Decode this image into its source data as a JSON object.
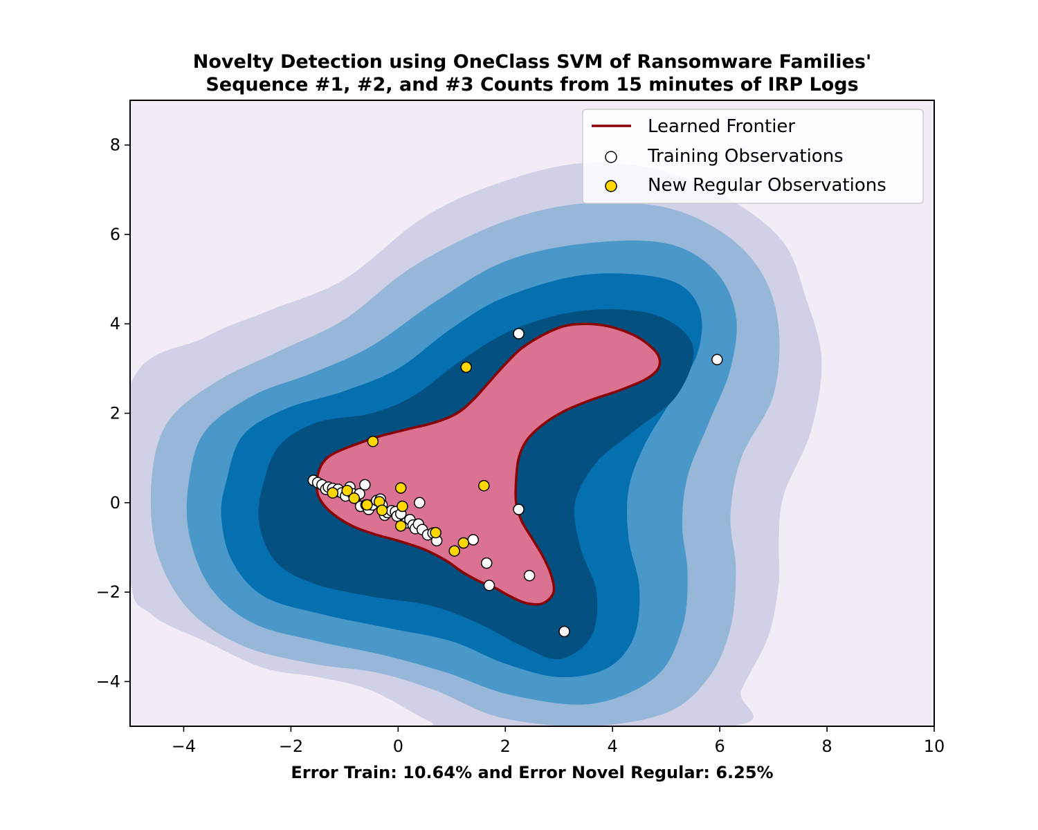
{
  "chart_data": {
    "type": "scatter",
    "title": "Novelty Detection using OneClass SVM of Ransomware Families'\nSequence #1, #2, and #3 Counts from 15 minutes of IRP Logs",
    "title_lines": [
      "Novelty Detection using OneClass SVM of Ransomware Families'",
      "Sequence #1, #2, and #3 Counts from 15 minutes of IRP Logs"
    ],
    "xlabel": "Error Train: 10.64% and Error Novel Regular: 6.25%",
    "ylabel": "",
    "xlim": [
      -5,
      10
    ],
    "ylim": [
      -5,
      9
    ],
    "xticks": [
      -4,
      -2,
      0,
      2,
      4,
      6,
      8,
      10
    ],
    "yticks": [
      -4,
      -2,
      0,
      2,
      4,
      6,
      8
    ],
    "xtick_labels": [
      "−4",
      "−2",
      "0",
      "2",
      "4",
      "6",
      "8",
      "10"
    ],
    "ytick_labels": [
      "−4",
      "−2",
      "0",
      "2",
      "4",
      "6",
      "8"
    ],
    "grid": false,
    "legend_placement": "upper-right",
    "legend": [
      {
        "label": "Learned Frontier",
        "kind": "line",
        "color": "#8b0000"
      },
      {
        "label": "Training Observations",
        "kind": "marker",
        "color": "#ffffff"
      },
      {
        "label": "New Regular Observations",
        "kind": "marker",
        "color": "#ffd700"
      }
    ],
    "colors": {
      "background": "#f1ecf5",
      "contour_levels": [
        "#d0d1e6",
        "#97b7d8",
        "#4a98c9",
        "#0570b0",
        "#045080"
      ],
      "frontier_fill": "#dc7292",
      "frontier_line": "#8b0000",
      "training": "#ffffff",
      "new_regular": "#ffd700"
    },
    "contour_boundaries": [
      [
        [
          -5,
          2.6
        ],
        [
          -3.6,
          3.7
        ],
        [
          -2.4,
          4.3
        ],
        [
          -1.0,
          5.0
        ],
        [
          0.5,
          6.4
        ],
        [
          2,
          7.2
        ],
        [
          3.5,
          7.6
        ],
        [
          5,
          7.4
        ],
        [
          6.3,
          6.7
        ],
        [
          7.2,
          5.8
        ],
        [
          7.6,
          4.6
        ],
        [
          7.9,
          3.2
        ],
        [
          7.7,
          1.6
        ],
        [
          7.2,
          0.2
        ],
        [
          7.1,
          -0.8
        ],
        [
          7.1,
          -1.8
        ],
        [
          6.9,
          -3
        ],
        [
          6.4,
          -4.2
        ],
        [
          6.2,
          -5
        ],
        [
          1.0,
          -5
        ],
        [
          0.6,
          -4.9
        ],
        [
          -0.5,
          -4.2
        ],
        [
          -1.5,
          -3.9
        ],
        [
          -2.5,
          -3.7
        ],
        [
          -3.6,
          -3.1
        ],
        [
          -4.6,
          -2.5
        ],
        [
          -5,
          -1.6
        ]
      ],
      [
        [
          -4.6,
          0.5
        ],
        [
          -4.3,
          1.8
        ],
        [
          -3.4,
          2.7
        ],
        [
          -2.2,
          3.4
        ],
        [
          -1.0,
          4.1
        ],
        [
          0.3,
          5.3
        ],
        [
          2,
          6.3
        ],
        [
          3.5,
          6.7
        ],
        [
          5,
          6.6
        ],
        [
          6.1,
          6.0
        ],
        [
          6.8,
          5.1
        ],
        [
          7.1,
          3.9
        ],
        [
          7.0,
          2.4
        ],
        [
          6.4,
          1.0
        ],
        [
          6.2,
          -0.3
        ],
        [
          6.3,
          -1.5
        ],
        [
          6.2,
          -2.8
        ],
        [
          5.8,
          -3.9
        ],
        [
          5.0,
          -4.7
        ],
        [
          3.5,
          -5.0
        ],
        [
          1.9,
          -4.8
        ],
        [
          0.7,
          -4.2
        ],
        [
          -0.4,
          -3.8
        ],
        [
          -1.6,
          -3.6
        ],
        [
          -2.9,
          -3.2
        ],
        [
          -3.9,
          -2.4
        ],
        [
          -4.5,
          -1.1
        ]
      ],
      [
        [
          -3.9,
          0.5
        ],
        [
          -3.6,
          1.6
        ],
        [
          -2.7,
          2.4
        ],
        [
          -1.6,
          2.9
        ],
        [
          -0.5,
          3.5
        ],
        [
          0.7,
          4.5
        ],
        [
          2,
          5.4
        ],
        [
          3.5,
          5.8
        ],
        [
          5,
          5.8
        ],
        [
          5.9,
          5.2
        ],
        [
          6.3,
          4.2
        ],
        [
          6.2,
          3.0
        ],
        [
          5.8,
          1.8
        ],
        [
          5.4,
          0.6
        ],
        [
          5.3,
          -0.5
        ],
        [
          5.4,
          -1.6
        ],
        [
          5.3,
          -2.8
        ],
        [
          4.8,
          -3.9
        ],
        [
          3.6,
          -4.5
        ],
        [
          2.1,
          -4.3
        ],
        [
          0.9,
          -3.8
        ],
        [
          -0.3,
          -3.4
        ],
        [
          -1.5,
          -3.1
        ],
        [
          -2.7,
          -2.7
        ],
        [
          -3.5,
          -1.9
        ],
        [
          -3.9,
          -0.7
        ]
      ],
      [
        [
          -3.2,
          0.5
        ],
        [
          -2.9,
          1.5
        ],
        [
          -2.1,
          2.1
        ],
        [
          -1.0,
          2.5
        ],
        [
          0,
          3.0
        ],
        [
          1.0,
          3.9
        ],
        [
          2,
          4.6
        ],
        [
          3.5,
          5.1
        ],
        [
          5,
          5.0
        ],
        [
          5.6,
          4.4
        ],
        [
          5.6,
          3.4
        ],
        [
          5.1,
          2.3
        ],
        [
          4.6,
          1.3
        ],
        [
          4.3,
          0.3
        ],
        [
          4.3,
          -0.8
        ],
        [
          4.5,
          -1.9
        ],
        [
          4.4,
          -3.0
        ],
        [
          3.9,
          -3.7
        ],
        [
          3.0,
          -3.9
        ],
        [
          2.0,
          -3.6
        ],
        [
          1.0,
          -3.1
        ],
        [
          -0.2,
          -2.8
        ],
        [
          -1.4,
          -2.5
        ],
        [
          -2.5,
          -2.1
        ],
        [
          -3.1,
          -1.3
        ],
        [
          -3.3,
          -0.3
        ]
      ],
      [
        [
          -2.5,
          0.5
        ],
        [
          -2.2,
          1.3
        ],
        [
          -1.5,
          1.8
        ],
        [
          -0.5,
          2.0
        ],
        [
          0.3,
          2.4
        ],
        [
          1.2,
          3.2
        ],
        [
          2.2,
          3.9
        ],
        [
          3.5,
          4.3
        ],
        [
          4.8,
          4.2
        ],
        [
          5.5,
          3.5
        ],
        [
          5.2,
          2.4
        ],
        [
          4.4,
          1.6
        ],
        [
          3.7,
          0.9
        ],
        [
          3.3,
          0.0
        ],
        [
          3.4,
          -1.0
        ],
        [
          3.7,
          -2.0
        ],
        [
          3.6,
          -3.0
        ],
        [
          3.0,
          -3.5
        ],
        [
          2.3,
          -3.2
        ],
        [
          1.5,
          -2.7
        ],
        [
          0.6,
          -2.3
        ],
        [
          -0.5,
          -2.1
        ],
        [
          -1.6,
          -1.8
        ],
        [
          -2.3,
          -1.3
        ],
        [
          -2.6,
          -0.4
        ]
      ]
    ],
    "frontier": [
      [
        -1.5,
        0.6
      ],
      [
        -1.4,
        0.9
      ],
      [
        -1.2,
        1.1
      ],
      [
        -0.8,
        1.3
      ],
      [
        -0.3,
        1.5
      ],
      [
        0.2,
        1.65
      ],
      [
        0.7,
        1.8
      ],
      [
        1.1,
        2.0
      ],
      [
        1.4,
        2.3
      ],
      [
        1.7,
        2.7
      ],
      [
        2.0,
        3.1
      ],
      [
        2.3,
        3.45
      ],
      [
        2.7,
        3.75
      ],
      [
        3.1,
        3.95
      ],
      [
        3.5,
        4.0
      ],
      [
        3.9,
        3.95
      ],
      [
        4.3,
        3.8
      ],
      [
        4.6,
        3.6
      ],
      [
        4.85,
        3.3
      ],
      [
        4.85,
        3.0
      ],
      [
        4.6,
        2.75
      ],
      [
        4.1,
        2.5
      ],
      [
        3.6,
        2.3
      ],
      [
        3.1,
        2.05
      ],
      [
        2.7,
        1.75
      ],
      [
        2.4,
        1.4
      ],
      [
        2.25,
        1.0
      ],
      [
        2.2,
        0.5
      ],
      [
        2.2,
        0.0
      ],
      [
        2.3,
        -0.4
      ],
      [
        2.5,
        -0.8
      ],
      [
        2.7,
        -1.2
      ],
      [
        2.85,
        -1.6
      ],
      [
        2.9,
        -2.0
      ],
      [
        2.7,
        -2.25
      ],
      [
        2.4,
        -2.25
      ],
      [
        2.1,
        -2.1
      ],
      [
        1.8,
        -1.9
      ],
      [
        1.5,
        -1.75
      ],
      [
        1.2,
        -1.55
      ],
      [
        0.9,
        -1.3
      ],
      [
        0.5,
        -1.05
      ],
      [
        0.0,
        -0.85
      ],
      [
        -0.4,
        -0.72
      ],
      [
        -0.8,
        -0.55
      ],
      [
        -1.1,
        -0.35
      ],
      [
        -1.35,
        -0.1
      ],
      [
        -1.5,
        0.2
      ]
    ],
    "series": [
      {
        "name": "Training Observations",
        "points": [
          [
            -1.58,
            0.5
          ],
          [
            -1.5,
            0.45
          ],
          [
            -1.42,
            0.4
          ],
          [
            -1.35,
            0.3
          ],
          [
            -1.3,
            0.35
          ],
          [
            -1.22,
            0.32
          ],
          [
            -1.15,
            0.25
          ],
          [
            -1.12,
            0.3
          ],
          [
            -1.05,
            0.22
          ],
          [
            -0.98,
            0.15
          ],
          [
            -0.9,
            0.35
          ],
          [
            -0.85,
            0.2
          ],
          [
            -0.8,
            0.1
          ],
          [
            -0.72,
            0.2
          ],
          [
            -0.7,
            -0.08
          ],
          [
            -0.62,
            0.4
          ],
          [
            -0.6,
            -0.05
          ],
          [
            -0.55,
            -0.15
          ],
          [
            -0.48,
            -0.05
          ],
          [
            -0.4,
            0.05
          ],
          [
            -0.33,
            0.08
          ],
          [
            -0.3,
            -0.05
          ],
          [
            -0.25,
            -0.28
          ],
          [
            -0.2,
            -0.22
          ],
          [
            -0.12,
            -0.18
          ],
          [
            -0.05,
            -0.2
          ],
          [
            -0.02,
            -0.3
          ],
          [
            0.05,
            -0.25
          ],
          [
            0.15,
            -0.45
          ],
          [
            0.22,
            -0.38
          ],
          [
            0.28,
            -0.5
          ],
          [
            0.32,
            -0.58
          ],
          [
            0.38,
            -0.48
          ],
          [
            0.4,
            0.0
          ],
          [
            0.45,
            -0.6
          ],
          [
            0.55,
            -0.72
          ],
          [
            0.65,
            -0.68
          ],
          [
            0.72,
            -0.85
          ],
          [
            1.4,
            -0.83
          ],
          [
            1.65,
            -1.35
          ],
          [
            1.7,
            -1.85
          ],
          [
            2.25,
            -0.15
          ],
          [
            2.45,
            -1.63
          ],
          [
            2.25,
            3.78
          ],
          [
            5.95,
            3.2
          ],
          [
            3.1,
            -2.88
          ]
        ]
      },
      {
        "name": "New Regular Observations",
        "points": [
          [
            -1.22,
            0.22
          ],
          [
            -0.95,
            0.27
          ],
          [
            -0.82,
            0.1
          ],
          [
            -0.58,
            -0.05
          ],
          [
            -0.35,
            0.02
          ],
          [
            -0.3,
            -0.17
          ],
          [
            0.05,
            0.33
          ],
          [
            0.05,
            -0.52
          ],
          [
            0.08,
            -0.08
          ],
          [
            0.7,
            -0.67
          ],
          [
            1.05,
            -1.08
          ],
          [
            1.22,
            -0.9
          ],
          [
            1.6,
            0.38
          ],
          [
            1.27,
            3.03
          ],
          [
            -0.47,
            1.37
          ]
        ]
      }
    ]
  }
}
